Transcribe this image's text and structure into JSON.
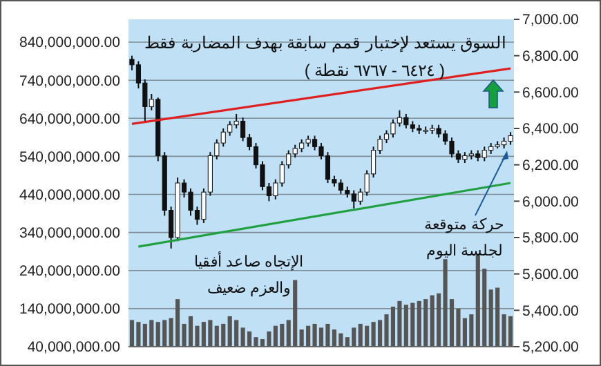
{
  "chart_data": {
    "type": "bar",
    "title": "السوق يستعد لإختبار قمم سابقة بهدف المضاربة فقط",
    "subtitle": "( ٦٤٢٤ - ٦٧٦٧ نقطة )",
    "annotations": [
      "الإتجاه صاعد أفقيا\nوالعزم ضعيف",
      "حركة متوقعة\nلجلسة اليوم"
    ],
    "categories": [
      null,
      null,
      null,
      null,
      null,
      null,
      null,
      null,
      null,
      null,
      null,
      null,
      null,
      null,
      null,
      null,
      null,
      null,
      null,
      null,
      null,
      null,
      null,
      null,
      null,
      null,
      null,
      null,
      null,
      null,
      null,
      null,
      null,
      null,
      null,
      null,
      null,
      null,
      null,
      null,
      null,
      null,
      null,
      null,
      null,
      null,
      null,
      null,
      null,
      null,
      null,
      null,
      null,
      null,
      null,
      null,
      null,
      null,
      null
    ],
    "series": [
      {
        "color": "#555555",
        "values": [
          110000000,
          105000000,
          100000000,
          110000000,
          105000000,
          110000000,
          115000000,
          165000000,
          100000000,
          120000000,
          95000000,
          105000000,
          110000000,
          95000000,
          100000000,
          120000000,
          110000000,
          90000000,
          80000000,
          65000000,
          60000000,
          80000000,
          95000000,
          100000000,
          110000000,
          215000000,
          85000000,
          95000000,
          100000000,
          90000000,
          100000000,
          85000000,
          75000000,
          65000000,
          90000000,
          100000000,
          95000000,
          105000000,
          110000000,
          125000000,
          145000000,
          160000000,
          150000000,
          155000000,
          160000000,
          165000000,
          175000000,
          180000000,
          270000000,
          165000000,
          140000000,
          115000000,
          125000000,
          280000000,
          245000000,
          190000000,
          195000000,
          125000000,
          120000000
        ]
      },
      {
        "type": "candlestick",
        "axis": "y2",
        "color": "#111111",
        "ohlc": [
          [
            6780,
            6800,
            6720,
            6750
          ],
          [
            6750,
            6770,
            6620,
            6650
          ],
          [
            6650,
            6670,
            6440,
            6520
          ],
          [
            6520,
            6590,
            6500,
            6560
          ],
          [
            6560,
            6570,
            6220,
            6250
          ],
          [
            6250,
            6270,
            5920,
            5950
          ],
          [
            5950,
            5970,
            5740,
            5800
          ],
          [
            5800,
            6130,
            5780,
            6100
          ],
          [
            6100,
            6120,
            6020,
            6050
          ],
          [
            6050,
            6070,
            5920,
            5950
          ],
          [
            5950,
            5970,
            5870,
            5900
          ],
          [
            5900,
            6070,
            5880,
            6050
          ],
          [
            6050,
            6270,
            6030,
            6250
          ],
          [
            6250,
            6340,
            6230,
            6320
          ],
          [
            6320,
            6400,
            6300,
            6380
          ],
          [
            6380,
            6440,
            6360,
            6420
          ],
          [
            6420,
            6480,
            6400,
            6440
          ],
          [
            6440,
            6460,
            6330,
            6350
          ],
          [
            6350,
            6370,
            6280,
            6300
          ],
          [
            6300,
            6320,
            6180,
            6200
          ],
          [
            6200,
            6220,
            6060,
            6080
          ],
          [
            6080,
            6100,
            6000,
            6030
          ],
          [
            6030,
            6120,
            6010,
            6100
          ],
          [
            6100,
            6220,
            6080,
            6200
          ],
          [
            6200,
            6280,
            6180,
            6260
          ],
          [
            6260,
            6310,
            6240,
            6290
          ],
          [
            6290,
            6340,
            6270,
            6320
          ],
          [
            6320,
            6360,
            6300,
            6340
          ],
          [
            6340,
            6360,
            6280,
            6300
          ],
          [
            6300,
            6320,
            6230,
            6250
          ],
          [
            6250,
            6270,
            6100,
            6120
          ],
          [
            6120,
            6140,
            6080,
            6100
          ],
          [
            6100,
            6120,
            6040,
            6060
          ],
          [
            6060,
            6080,
            6020,
            6040
          ],
          [
            6040,
            6060,
            5960,
            6000
          ],
          [
            6000,
            6070,
            5980,
            6050
          ],
          [
            6050,
            6170,
            6030,
            6150
          ],
          [
            6150,
            6300,
            6130,
            6280
          ],
          [
            6280,
            6360,
            6260,
            6340
          ],
          [
            6340,
            6390,
            6320,
            6370
          ],
          [
            6370,
            6450,
            6350,
            6430
          ],
          [
            6430,
            6500,
            6410,
            6460
          ],
          [
            6460,
            6480,
            6400,
            6420
          ],
          [
            6420,
            6440,
            6380,
            6400
          ],
          [
            6400,
            6420,
            6370,
            6390
          ],
          [
            6390,
            6410,
            6370,
            6390
          ],
          [
            6390,
            6420,
            6370,
            6400
          ],
          [
            6400,
            6420,
            6350,
            6370
          ],
          [
            6370,
            6390,
            6310,
            6330
          ],
          [
            6330,
            6350,
            6240,
            6260
          ],
          [
            6260,
            6280,
            6210,
            6230
          ],
          [
            6230,
            6270,
            6210,
            6250
          ],
          [
            6250,
            6280,
            6230,
            6260
          ],
          [
            6260,
            6280,
            6220,
            6240
          ],
          [
            6240,
            6300,
            6220,
            6280
          ],
          [
            6280,
            6320,
            6260,
            6300
          ],
          [
            6300,
            6330,
            6290,
            6310
          ],
          [
            6310,
            6350,
            6290,
            6330
          ],
          [
            6330,
            6380,
            6310,
            6360
          ]
        ]
      },
      {
        "type": "line",
        "axis": "y2",
        "color": "#e02020",
        "values": [
          6425,
          null,
          null,
          null,
          null,
          null,
          null,
          null,
          null,
          null,
          null,
          null,
          null,
          null,
          null,
          null,
          null,
          null,
          null,
          null,
          null,
          null,
          null,
          null,
          null,
          null,
          null,
          null,
          null,
          null,
          null,
          null,
          null,
          null,
          null,
          null,
          null,
          null,
          null,
          null,
          null,
          null,
          null,
          null,
          null,
          null,
          null,
          null,
          null,
          null,
          null,
          null,
          null,
          null,
          null,
          null,
          null,
          null,
          6730
        ]
      },
      {
        "type": "line",
        "axis": "y2",
        "color": "#20a040",
        "values": [
          null,
          5750,
          null,
          null,
          null,
          null,
          null,
          null,
          null,
          null,
          null,
          null,
          null,
          null,
          null,
          null,
          null,
          null,
          null,
          null,
          null,
          null,
          null,
          null,
          null,
          null,
          null,
          null,
          null,
          null,
          null,
          null,
          null,
          null,
          null,
          null,
          null,
          null,
          null,
          null,
          null,
          null,
          null,
          null,
          null,
          null,
          null,
          null,
          null,
          null,
          null,
          null,
          null,
          null,
          null,
          null,
          null,
          null,
          6100
        ]
      }
    ],
    "ylim": [
      40000000,
      900000000
    ],
    "yticks": [
      {
        "value": 40000000,
        "label": "40,000,000.00"
      },
      {
        "value": 140000000,
        "label": "140,000,000.00"
      },
      {
        "value": 240000000,
        "label": "240,000,000.00"
      },
      {
        "value": 340000000,
        "label": "340,000,000.00"
      },
      {
        "value": 440000000,
        "label": "440,000,000.00"
      },
      {
        "value": 540000000,
        "label": "540,000,000.00"
      },
      {
        "value": 640000000,
        "label": "640,000,000.00"
      },
      {
        "value": 740000000,
        "label": "740,000,000.00"
      },
      {
        "value": 840000000,
        "label": "840,000,000.00"
      }
    ],
    "y2lim": [
      5200,
      7000
    ],
    "y2ticks": [
      {
        "value": 5200,
        "label": "5,200.00"
      },
      {
        "value": 5400,
        "label": "5,400.00"
      },
      {
        "value": 5600,
        "label": "5,600.00"
      },
      {
        "value": 5800,
        "label": "5,800.00"
      },
      {
        "value": 6000,
        "label": "6,000.00"
      },
      {
        "value": 6200,
        "label": "6,200.00"
      },
      {
        "value": 6400,
        "label": "6,400.00"
      },
      {
        "value": 6600,
        "label": "6,600.00"
      },
      {
        "value": 6800,
        "label": "6,800.00"
      },
      {
        "value": 7000,
        "label": "7,000.00"
      }
    ],
    "grid": "y"
  }
}
